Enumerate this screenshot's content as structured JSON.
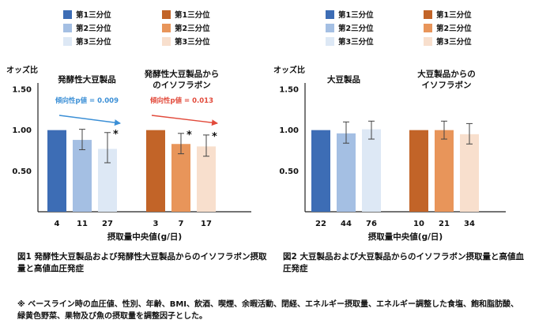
{
  "chart_data": [
    {
      "type": "bar",
      "ylabel": "オッズ比",
      "ylim": [
        0,
        1.5
      ],
      "yticks": [
        "0.50",
        "1.00",
        "1.50"
      ],
      "xlabel": "摂取量中央値(g/日)",
      "legend": [
        {
          "name": "第1三分位",
          "group": "発酵性大豆製品",
          "color": "#3d6db5"
        },
        {
          "name": "第2三分位",
          "group": "発酵性大豆製品",
          "color": "#a4bfe3"
        },
        {
          "name": "第3三分位",
          "group": "発酵性大豆製品",
          "color": "#dde8f5"
        },
        {
          "name": "第1三分位",
          "group": "発酵性大豆製品からのイソフラボン",
          "color": "#c26428"
        },
        {
          "name": "第2三分位",
          "group": "発酵性大豆製品からのイソフラボン",
          "color": "#e8955a"
        },
        {
          "name": "第3三分位",
          "group": "発酵性大豆製品からのイソフラボン",
          "color": "#f8dfcd"
        }
      ],
      "groups": [
        {
          "label_lines": [
            "発酵性大豆製品"
          ],
          "trend": "傾向性p値 = 0.009",
          "trend_color": "#3b8fd6",
          "x_labels": [
            "4",
            "11",
            "27"
          ],
          "values": [
            1.0,
            0.88,
            0.77
          ],
          "err_low": [
            1.0,
            0.76,
            0.6
          ],
          "err_high": [
            1.0,
            1.01,
            0.97
          ],
          "colors": [
            "#3d6db5",
            "#a4bfe3",
            "#dde8f5"
          ],
          "significant": [
            false,
            false,
            true
          ]
        },
        {
          "label_lines": [
            "発酵性大豆製品から",
            "のイソフラボン"
          ],
          "trend": "傾向性p値 = 0.013",
          "trend_color": "#e24a3b",
          "x_labels": [
            "3",
            "7",
            "17"
          ],
          "values": [
            1.0,
            0.83,
            0.8
          ],
          "err_low": [
            1.0,
            0.71,
            0.68
          ],
          "err_high": [
            1.0,
            0.96,
            0.94
          ],
          "colors": [
            "#c26428",
            "#e8955a",
            "#f8dfcd"
          ],
          "significant": [
            false,
            true,
            true
          ]
        }
      ]
    },
    {
      "type": "bar",
      "ylabel": "オッズ比",
      "ylim": [
        0,
        1.5
      ],
      "yticks": [
        "0.50",
        "1.00",
        "1.50"
      ],
      "xlabel": "摂取量中央値(g/日)",
      "legend": [
        {
          "name": "第1三分位",
          "group": "大豆製品",
          "color": "#3d6db5"
        },
        {
          "name": "第2三分位",
          "group": "大豆製品",
          "color": "#a4bfe3"
        },
        {
          "name": "第3三分位",
          "group": "大豆製品",
          "color": "#dde8f5"
        },
        {
          "name": "第1三分位",
          "group": "大豆製品からのイソフラボン",
          "color": "#c26428"
        },
        {
          "name": "第2三分位",
          "group": "大豆製品からのイソフラボン",
          "color": "#e8955a"
        },
        {
          "name": "第3三分位",
          "group": "大豆製品からのイソフラボン",
          "color": "#f8dfcd"
        }
      ],
      "groups": [
        {
          "label_lines": [
            "大豆製品"
          ],
          "trend": "",
          "trend_color": "",
          "x_labels": [
            "22",
            "44",
            "76"
          ],
          "values": [
            1.0,
            0.96,
            1.01
          ],
          "err_low": [
            1.0,
            0.84,
            0.89
          ],
          "err_high": [
            1.0,
            1.1,
            1.11
          ],
          "colors": [
            "#3d6db5",
            "#a4bfe3",
            "#dde8f5"
          ],
          "significant": [
            false,
            false,
            false
          ]
        },
        {
          "label_lines": [
            "大豆製品からの",
            "イソフラボン"
          ],
          "trend": "",
          "trend_color": "",
          "x_labels": [
            "10",
            "21",
            "34"
          ],
          "values": [
            1.0,
            1.0,
            0.95
          ],
          "err_low": [
            1.0,
            0.89,
            0.83
          ],
          "err_high": [
            1.0,
            1.11,
            1.08
          ],
          "colors": [
            "#c26428",
            "#e8955a",
            "#f8dfcd"
          ],
          "significant": [
            false,
            false,
            false
          ]
        }
      ]
    }
  ],
  "captions": {
    "fig1": "図1 発酵性大豆製品および発酵性大豆製品からのイソフラボン摂取量と高値血圧発症",
    "fig2": "図2 大豆製品および大豆製品からのイソフラボン摂取量と高値血圧発症"
  },
  "footnote": "※ ベースライン時の血圧値、性別、年齢、BMI、飲酒、喫煙、余暇活動、閉経、エネルギー摂取量、エネルギー調整した食塩、飽和脂肪酸、緑黄色野菜、果物及び魚の摂取量を調整因子とした。",
  "significance_marker": "*"
}
